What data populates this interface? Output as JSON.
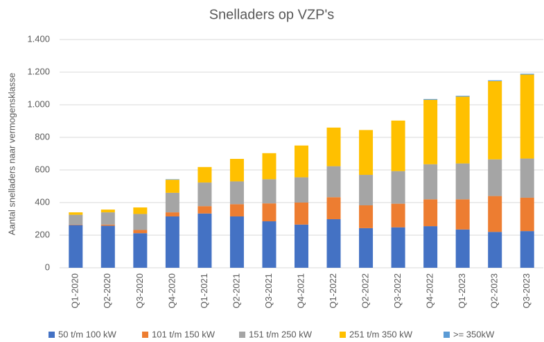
{
  "chart_data": {
    "type": "bar",
    "stacked": true,
    "title": "Snelladers op VZP's",
    "ylabel": "Aantal snelladers naar vermogensklasse",
    "categories": [
      "Q1-2020",
      "Q2-2020",
      "Q3-2020",
      "Q4-2020",
      "Q1-2021",
      "Q2-2021",
      "Q3-2021",
      "Q4-2021",
      "Q1-2022",
      "Q2-2022",
      "Q3-2022",
      "Q4-2022",
      "Q1-2023",
      "Q2-2023",
      "Q3-2023"
    ],
    "series": [
      {
        "name": "50 t/m 100 kW",
        "color": "#4472c4",
        "values": [
          262,
          258,
          212,
          315,
          333,
          315,
          285,
          265,
          298,
          243,
          248,
          255,
          235,
          220,
          225
        ]
      },
      {
        "name": "101 t/m 150 kW",
        "color": "#ed7d31",
        "values": [
          3,
          7,
          20,
          25,
          45,
          75,
          110,
          135,
          135,
          140,
          145,
          165,
          185,
          220,
          205
        ]
      },
      {
        "name": "151 t/m 250 kW",
        "color": "#a5a5a5",
        "values": [
          60,
          75,
          98,
          120,
          145,
          140,
          148,
          155,
          190,
          187,
          200,
          215,
          220,
          225,
          240
        ]
      },
      {
        "name": "251 t/m 350 kW",
        "color": "#ffc000",
        "values": [
          15,
          17,
          40,
          80,
          95,
          138,
          160,
          195,
          237,
          275,
          310,
          395,
          410,
          480,
          515
        ]
      },
      {
        "name": ">= 350kW",
        "color": "#5b9bd5",
        "values": [
          0,
          0,
          0,
          3,
          0,
          0,
          0,
          0,
          0,
          0,
          0,
          5,
          5,
          5,
          5
        ]
      }
    ],
    "ylim": [
      0,
      1400
    ],
    "yticks": [
      0,
      200,
      400,
      600,
      800,
      {
        "value": 1000,
        "label": "1.000"
      },
      {
        "value": 1200,
        "label": "1.200"
      },
      {
        "value": 1400,
        "label": "1.400"
      }
    ],
    "grid": true,
    "legend": "bottom"
  }
}
